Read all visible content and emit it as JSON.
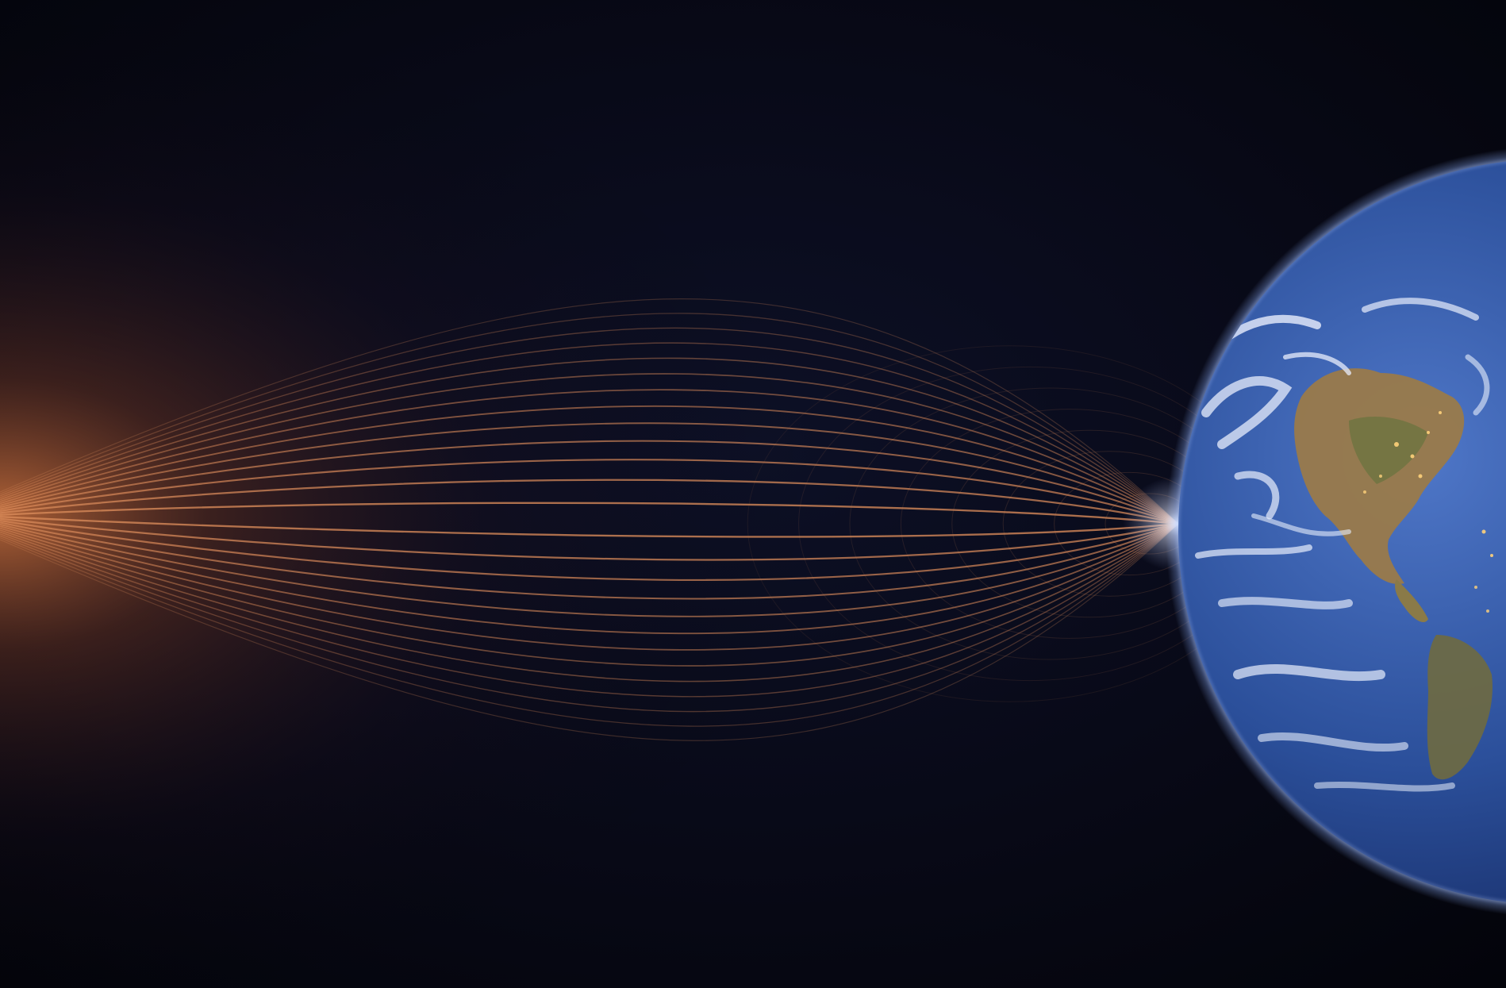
{
  "scene": {
    "subject": "earth-magnetosphere",
    "colors": {
      "space_background": "#05060f",
      "space_mid": "#0b0d22",
      "solar_glow": "#c96a38",
      "field_lines": "#d98a5a",
      "cusp_glow": "#ffffff",
      "ocean": "#2b4f9a",
      "ocean_deep": "#14275e",
      "land": "#9a7a4a",
      "land_green": "#6d7440",
      "clouds": "#e8eefc",
      "atmosphere": "#8fb2ff",
      "night_side": "#03040a",
      "city_lights": "#ffd27a"
    }
  }
}
